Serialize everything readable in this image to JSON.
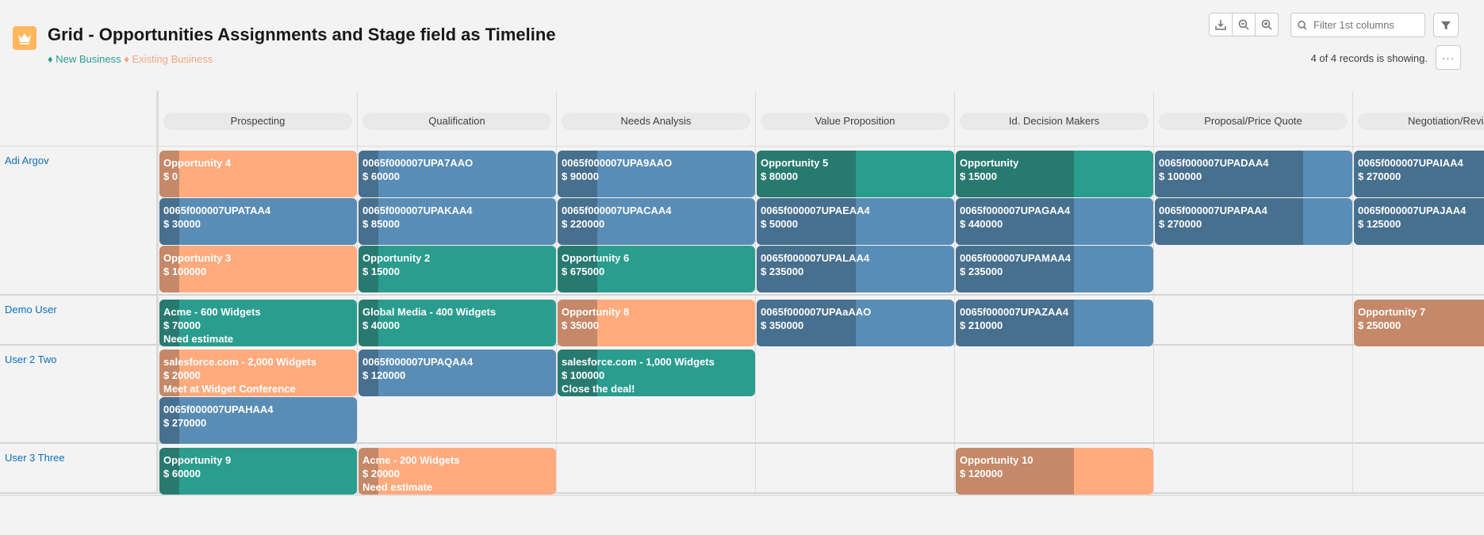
{
  "header": {
    "title": "Grid - Opportunities Assignments and Stage field as Timeline",
    "legend_new": "♦ New Business",
    "legend_existing": "♦ Existing Business",
    "search_placeholder": "Filter 1st columns",
    "records_text": "4 of 4 records is showing.",
    "more_label": "···",
    "toolbar_icons": [
      "download-icon",
      "zoom-out-icon",
      "zoom-in-icon"
    ],
    "app_icon": "crown-icon"
  },
  "colors": {
    "new_business": "#2a9d8f",
    "existing_business": "#ffab7e",
    "other": "#5a8db5"
  },
  "stages": [
    "Prospecting",
    "Qualification",
    "Needs Analysis",
    "Value Proposition",
    "Id. Decision Makers",
    "Proposal/Price Quote",
    "Negotiation/Review"
  ],
  "users": [
    "Adi Argov",
    "Demo User",
    "User 2 Two",
    "User 3 Three"
  ],
  "cards": [
    {
      "user": 0,
      "stage": 0,
      "slot": 0,
      "type": "orange",
      "progress": 0.1,
      "title": "Opportunity 4",
      "amount": "$ 0"
    },
    {
      "user": 0,
      "stage": 0,
      "slot": 1,
      "type": "blue",
      "progress": 0.1,
      "title": "0065f000007UPATAA4",
      "amount": "$ 30000"
    },
    {
      "user": 0,
      "stage": 0,
      "slot": 2,
      "type": "orange",
      "progress": 0.1,
      "title": "Opportunity 3",
      "amount": "$ 100000"
    },
    {
      "user": 0,
      "stage": 1,
      "slot": 0,
      "type": "blue",
      "progress": 0.1,
      "title": "0065f000007UPA7AAO",
      "amount": "$ 60000"
    },
    {
      "user": 0,
      "stage": 1,
      "slot": 1,
      "type": "blue",
      "progress": 0.1,
      "title": "0065f000007UPAKAA4",
      "amount": "$ 85000"
    },
    {
      "user": 0,
      "stage": 1,
      "slot": 2,
      "type": "teal",
      "progress": 0.1,
      "title": "Opportunity 2",
      "amount": "$ 15000"
    },
    {
      "user": 0,
      "stage": 2,
      "slot": 0,
      "type": "blue",
      "progress": 0.2,
      "title": "0065f000007UPA9AAO",
      "amount": "$ 90000"
    },
    {
      "user": 0,
      "stage": 2,
      "slot": 1,
      "type": "blue",
      "progress": 0.2,
      "title": "0065f000007UPACAA4",
      "amount": "$ 220000"
    },
    {
      "user": 0,
      "stage": 2,
      "slot": 2,
      "type": "teal",
      "progress": 0.2,
      "title": "Opportunity 6",
      "amount": "$ 675000"
    },
    {
      "user": 0,
      "stage": 3,
      "slot": 0,
      "type": "teal",
      "progress": 0.5,
      "title": "Opportunity 5",
      "amount": "$ 80000"
    },
    {
      "user": 0,
      "stage": 3,
      "slot": 1,
      "type": "blue",
      "progress": 0.5,
      "title": "0065f000007UPAEAA4",
      "amount": "$ 50000"
    },
    {
      "user": 0,
      "stage": 3,
      "slot": 2,
      "type": "blue",
      "progress": 0.5,
      "title": "0065f000007UPALAA4",
      "amount": "$ 235000"
    },
    {
      "user": 0,
      "stage": 4,
      "slot": 0,
      "type": "teal",
      "progress": 0.6,
      "title": "Opportunity",
      "amount": "$ 15000"
    },
    {
      "user": 0,
      "stage": 4,
      "slot": 1,
      "type": "blue",
      "progress": 0.6,
      "title": "0065f000007UPAGAA4",
      "amount": "$ 440000"
    },
    {
      "user": 0,
      "stage": 4,
      "slot": 2,
      "type": "blue",
      "progress": 0.6,
      "title": "0065f000007UPAMAA4",
      "amount": "$ 235000"
    },
    {
      "user": 0,
      "stage": 5,
      "slot": 0,
      "type": "blue",
      "progress": 0.75,
      "title": "0065f000007UPADAA4",
      "amount": "$ 100000"
    },
    {
      "user": 0,
      "stage": 5,
      "slot": 1,
      "type": "blue",
      "progress": 0.75,
      "title": "0065f000007UPAPAA4",
      "amount": "$ 270000"
    },
    {
      "user": 0,
      "stage": 6,
      "slot": 0,
      "type": "blue",
      "progress": 0.9,
      "title": "0065f000007UPAIAA4",
      "amount": "$ 270000"
    },
    {
      "user": 0,
      "stage": 6,
      "slot": 1,
      "type": "blue",
      "progress": 0.9,
      "title": "0065f000007UPAJAA4",
      "amount": "$ 125000"
    },
    {
      "user": 1,
      "stage": 0,
      "slot": 0,
      "type": "teal",
      "progress": 0.1,
      "title": "Acme - 600 Widgets",
      "amount": "$ 70000",
      "note": "Need estimate"
    },
    {
      "user": 1,
      "stage": 1,
      "slot": 0,
      "type": "teal",
      "progress": 0.1,
      "title": "Global Media - 400 Widgets",
      "amount": "$ 40000"
    },
    {
      "user": 1,
      "stage": 2,
      "slot": 0,
      "type": "orange",
      "progress": 0.2,
      "title": "Opportunity 8",
      "amount": "$ 35000"
    },
    {
      "user": 1,
      "stage": 3,
      "slot": 0,
      "type": "blue",
      "progress": 0.5,
      "title": "0065f000007UPAaAAO",
      "amount": "$ 350000"
    },
    {
      "user": 1,
      "stage": 4,
      "slot": 0,
      "type": "blue",
      "progress": 0.6,
      "title": "0065f000007UPAZAA4",
      "amount": "$ 210000"
    },
    {
      "user": 1,
      "stage": 6,
      "slot": 0,
      "type": "orange",
      "progress": 0.9,
      "title": "Opportunity 7",
      "amount": "$ 250000"
    },
    {
      "user": 2,
      "stage": 0,
      "slot": 0,
      "type": "orange",
      "progress": 0.1,
      "title": "salesforce.com - 2,000 Widgets",
      "amount": "$ 20000",
      "note": "Meet at Widget Conference"
    },
    {
      "user": 2,
      "stage": 0,
      "slot": 1,
      "type": "blue",
      "progress": 0.1,
      "title": "0065f000007UPAHAA4",
      "amount": "$ 270000"
    },
    {
      "user": 2,
      "stage": 1,
      "slot": 0,
      "type": "blue",
      "progress": 0.1,
      "title": "0065f000007UPAQAA4",
      "amount": "$ 120000"
    },
    {
      "user": 2,
      "stage": 2,
      "slot": 0,
      "type": "teal",
      "progress": 0.2,
      "title": "salesforce.com - 1,000 Widgets",
      "amount": "$ 100000",
      "note": "Close the deal!"
    },
    {
      "user": 3,
      "stage": 0,
      "slot": 0,
      "type": "teal",
      "progress": 0.1,
      "title": "Opportunity 9",
      "amount": "$ 60000"
    },
    {
      "user": 3,
      "stage": 1,
      "slot": 0,
      "type": "orange",
      "progress": 0.1,
      "title": "Acme - 200 Widgets",
      "amount": "$ 20000",
      "note": "Need estimate"
    },
    {
      "user": 3,
      "stage": 4,
      "slot": 0,
      "type": "orange",
      "progress": 0.6,
      "title": "Opportunity 10",
      "amount": "$ 120000"
    }
  ]
}
